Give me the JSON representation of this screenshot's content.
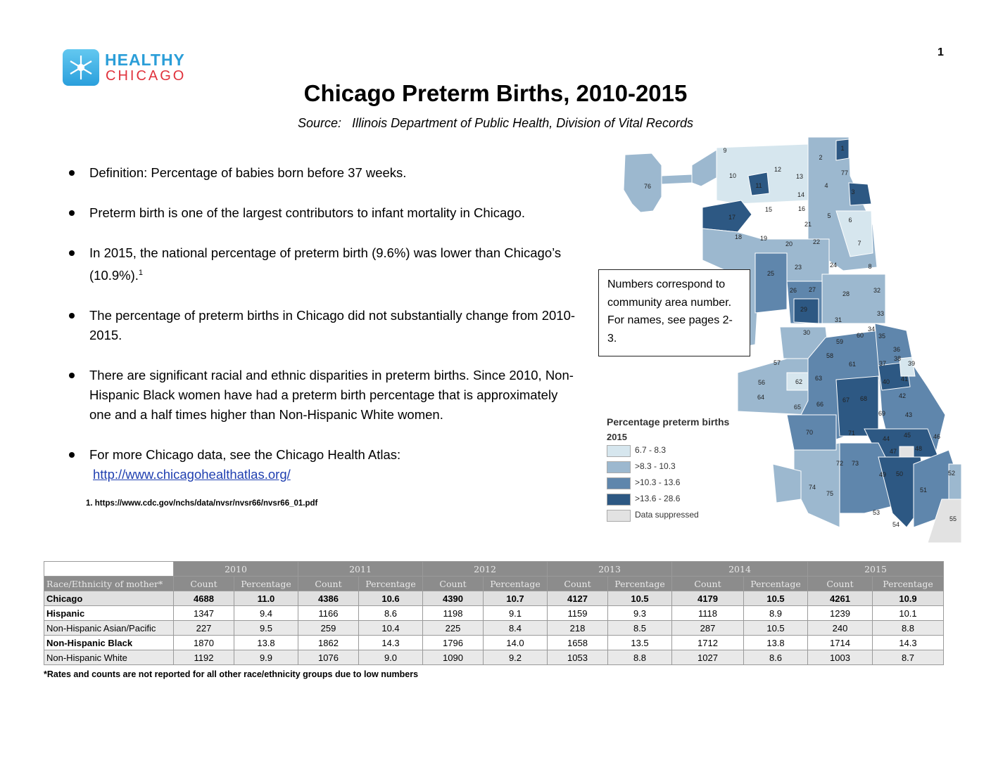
{
  "logo": {
    "line1": "HEALTHY",
    "line2": "CHICAGO"
  },
  "page_number": "1",
  "title": "Chicago Preterm Births, 2010-2015",
  "source": {
    "label": "Source:",
    "text": "Illinois Department of Public Health, Division of Vital Records"
  },
  "bullets": [
    {
      "text": "Definition: Percentage of babies born before 37 weeks."
    },
    {
      "text": "Preterm birth is one of the largest contributors to infant mortality in Chicago."
    },
    {
      "text": "In 2015, the national percentage of preterm birth (9.6%) was lower than Chicago’s (10.9%).",
      "sup": "1"
    },
    {
      "text": "The percentage of preterm births in Chicago did not substantially change from 2010-2015."
    },
    {
      "text": "There are significant racial and ethnic disparities in preterm births. Since 2010, Non-Hispanic Black women have had a preterm birth percentage that is approximately one and a half times higher than Non-Hispanic White women."
    },
    {
      "text": "For more Chicago data, see the Chicago Health Atlas:",
      "link": "http://www.chicagohealthatlas.org/"
    }
  ],
  "footnote": "1. https://www.cdc.gov/nchs/data/nvsr/nvsr66/nvsr66_01.pdf",
  "map": {
    "note": "Numbers correspond to community area number. For names, see pages 2-3.",
    "legend_title": "Percentage preterm births",
    "legend_year": "2015",
    "legend": [
      {
        "label": "6.7 - 8.3",
        "color": "#d6e6ee"
      },
      {
        "label": ">8.3 - 10.3",
        "color": "#9cb8cf"
      },
      {
        "label": ">10.3 - 13.6",
        "color": "#5f86ac"
      },
      {
        "label": ">13.6 - 28.6",
        "color": "#2d5883"
      },
      {
        "label": "Data suppressed",
        "color": "#e2e2e2"
      }
    ],
    "area_numbers": [
      "1",
      "2",
      "3",
      "4",
      "5",
      "6",
      "7",
      "8",
      "9",
      "10",
      "11",
      "12",
      "13",
      "14",
      "15",
      "16",
      "17",
      "18",
      "19",
      "20",
      "21",
      "22",
      "23",
      "24",
      "25",
      "26",
      "27",
      "28",
      "29",
      "30",
      "31",
      "32",
      "33",
      "34",
      "35",
      "36",
      "37",
      "38",
      "39",
      "40",
      "41",
      "42",
      "43",
      "44",
      "45",
      "46",
      "47",
      "48",
      "49",
      "50",
      "51",
      "52",
      "53",
      "54",
      "55",
      "56",
      "57",
      "58",
      "59",
      "60",
      "61",
      "62",
      "63",
      "64",
      "65",
      "66",
      "67",
      "68",
      "69",
      "70",
      "71",
      "72",
      "73",
      "74",
      "75",
      "76",
      "77"
    ]
  },
  "table": {
    "years": [
      "2010",
      "2011",
      "2012",
      "2013",
      "2014",
      "2015"
    ],
    "first_header": "Race/Ethnicity of mother*",
    "count_label": "Count",
    "pct_label": "Percentage",
    "rows": [
      {
        "label": "Chicago",
        "values": [
          "4688",
          "11.0",
          "4386",
          "10.6",
          "4390",
          "10.7",
          "4127",
          "10.5",
          "4179",
          "10.5",
          "4261",
          "10.9"
        ]
      },
      {
        "label": "Hispanic",
        "values": [
          "1347",
          "9.4",
          "1166",
          "8.6",
          "1198",
          "9.1",
          "1159",
          "9.3",
          "1118",
          "8.9",
          "1239",
          "10.1"
        ]
      },
      {
        "label": "Non-Hispanic Asian/Pacific",
        "values": [
          "227",
          "9.5",
          "259",
          "10.4",
          "225",
          "8.4",
          "218",
          "8.5",
          "287",
          "10.5",
          "240",
          "8.8"
        ]
      },
      {
        "label": "Non-Hispanic Black",
        "values": [
          "1870",
          "13.8",
          "1862",
          "14.3",
          "1796",
          "14.0",
          "1658",
          "13.5",
          "1712",
          "13.8",
          "1714",
          "14.3"
        ]
      },
      {
        "label": "Non-Hispanic White",
        "values": [
          "1192",
          "9.9",
          "1076",
          "9.0",
          "1090",
          "9.2",
          "1053",
          "8.8",
          "1027",
          "8.6",
          "1003",
          "8.7"
        ]
      }
    ],
    "note": "*Rates and counts are not reported for all other race/ethnicity groups due to low numbers"
  }
}
